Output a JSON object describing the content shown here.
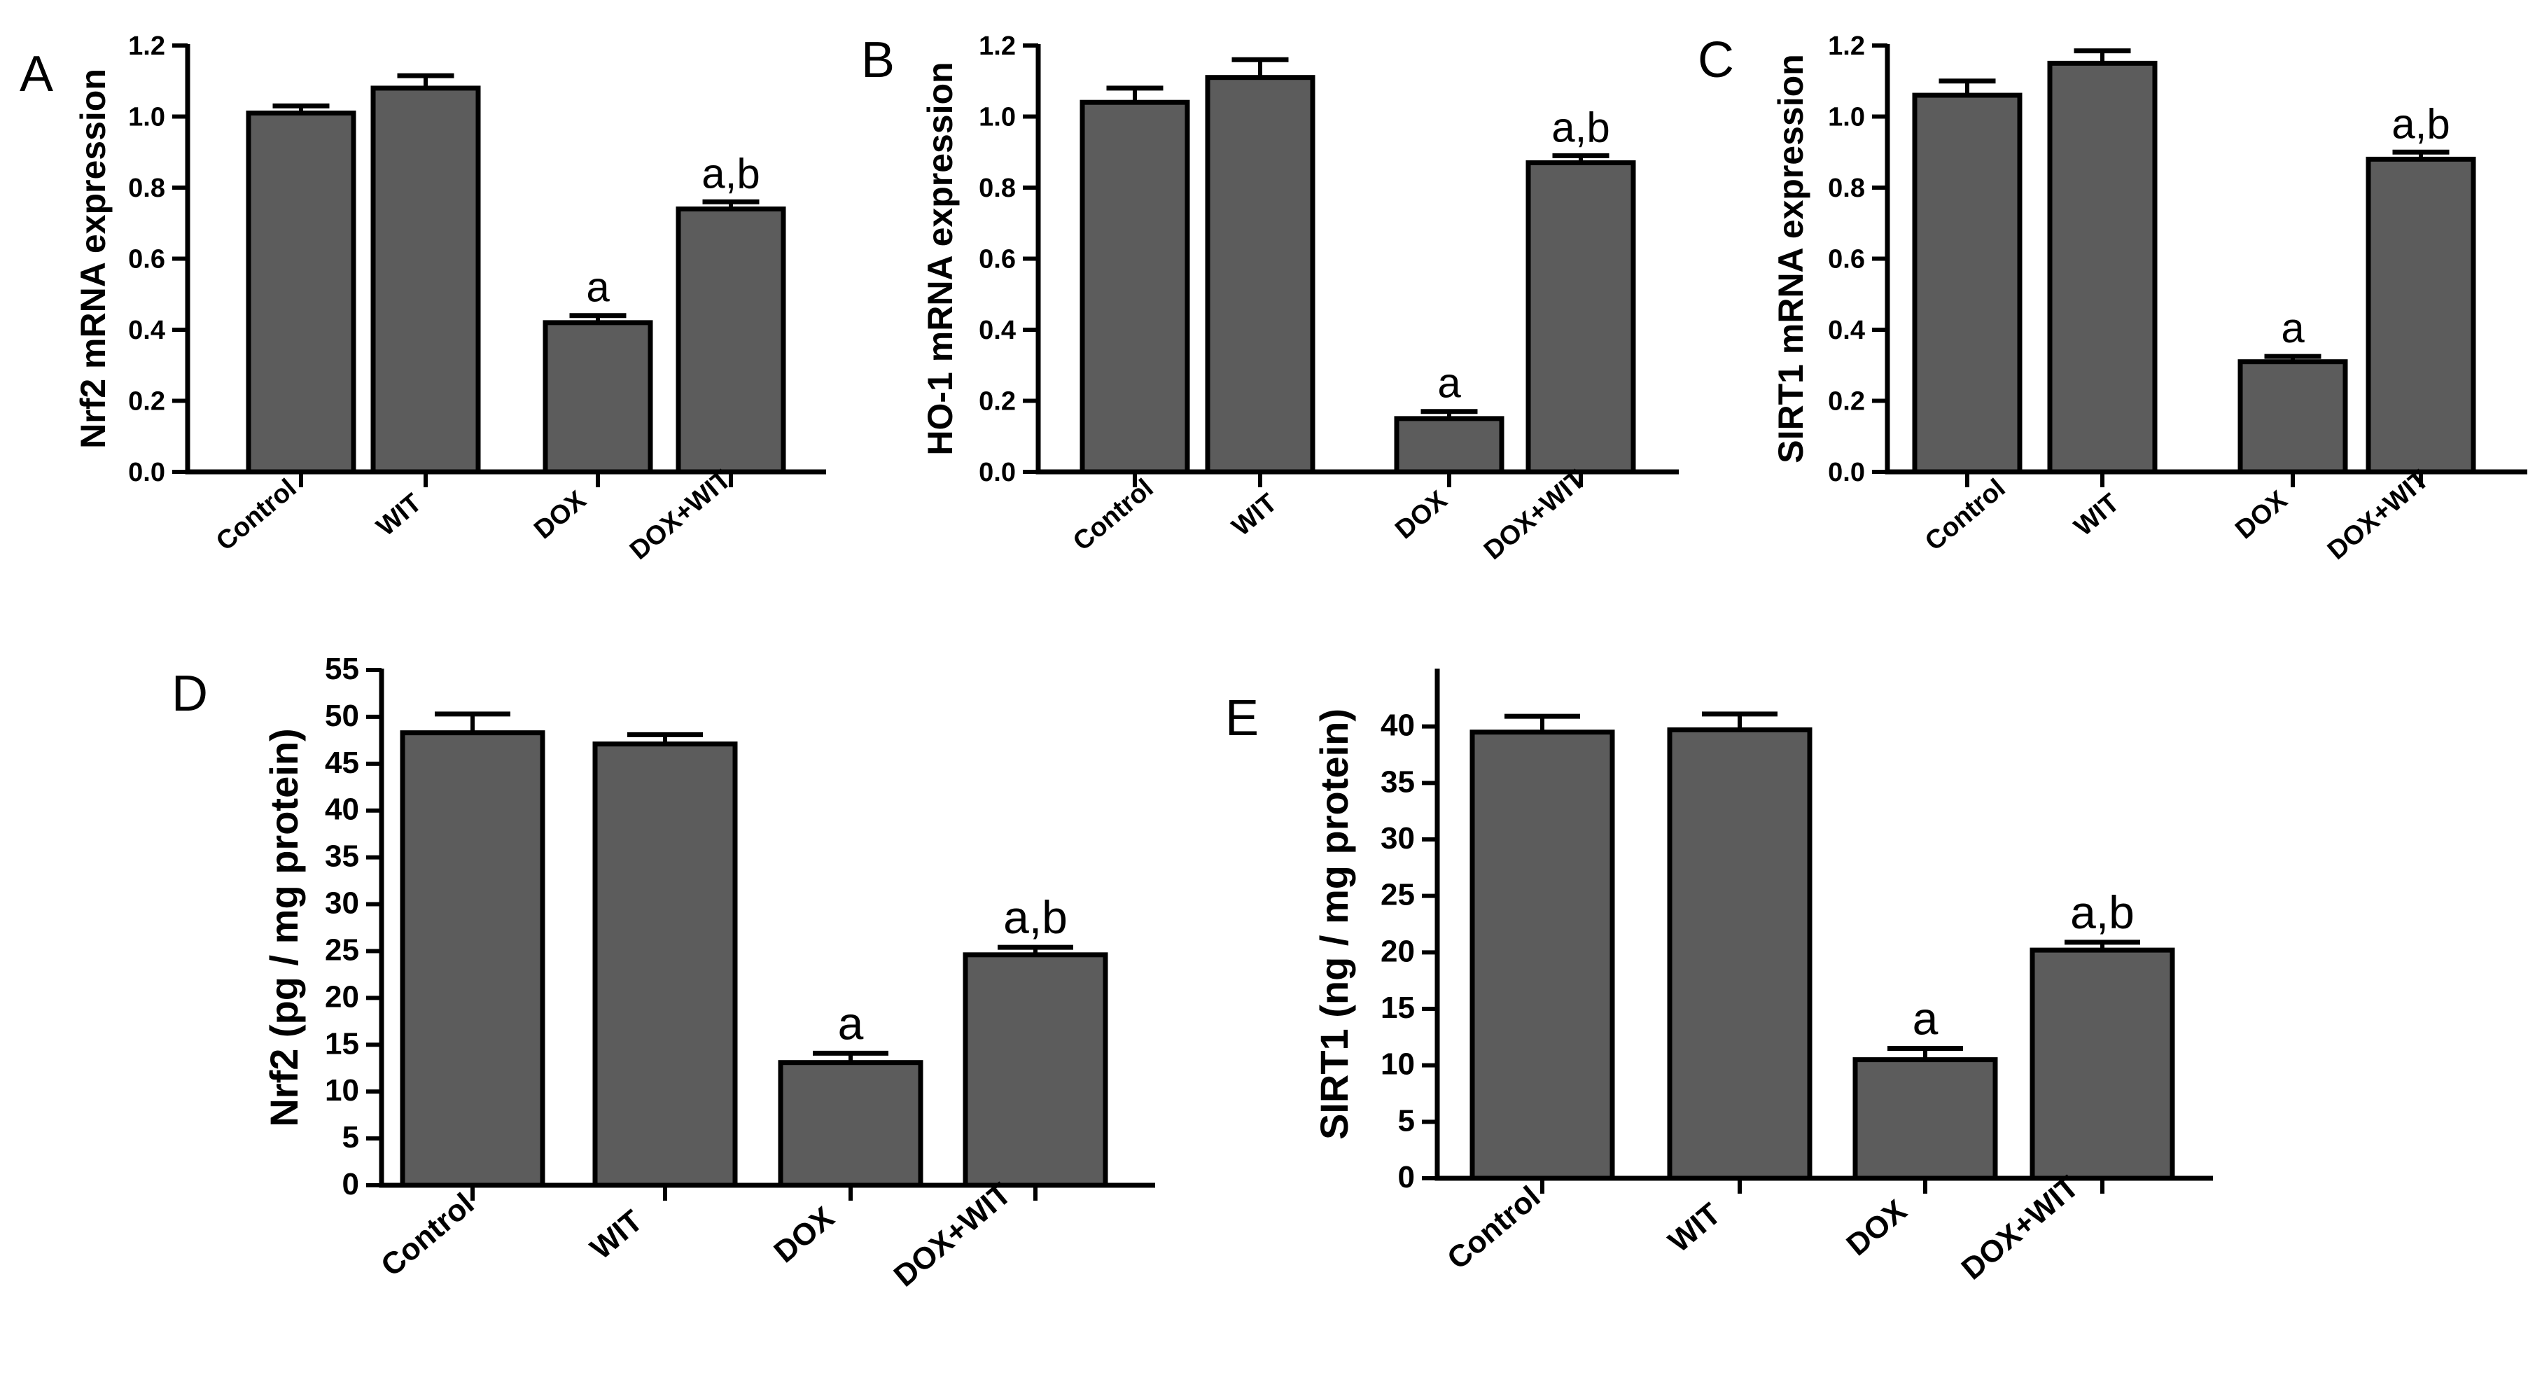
{
  "chart_data": [
    {
      "panel": "A",
      "type": "bar",
      "categories": [
        "Control",
        "WIT",
        "DOX",
        "DOX+WIT"
      ],
      "values": [
        1.01,
        1.08,
        0.42,
        0.74
      ],
      "errors": [
        0.02,
        0.035,
        0.02,
        0.02
      ],
      "annotations": [
        "",
        "",
        "a",
        "a,b"
      ],
      "ylabel": "Nrf2 mRNA expression",
      "ylim": [
        0,
        1.2
      ],
      "yticks": [
        "0.0",
        "0.2",
        "0.4",
        "0.6",
        "0.8",
        "1.0",
        "1.2"
      ],
      "bar_color": "#5c5c5c",
      "grid": false
    },
    {
      "panel": "B",
      "type": "bar",
      "categories": [
        "Control",
        "WIT",
        "DOX",
        "DOX+WIT"
      ],
      "values": [
        1.04,
        1.11,
        0.15,
        0.87
      ],
      "errors": [
        0.04,
        0.05,
        0.02,
        0.02
      ],
      "annotations": [
        "",
        "",
        "a",
        "a,b"
      ],
      "ylabel": "HO-1 mRNA expression",
      "ylim": [
        0,
        1.2
      ],
      "yticks": [
        "0.0",
        "0.2",
        "0.4",
        "0.6",
        "0.8",
        "1.0",
        "1.2"
      ],
      "bar_color": "#5c5c5c",
      "grid": false
    },
    {
      "panel": "C",
      "type": "bar",
      "categories": [
        "Control",
        "WIT",
        "DOX",
        "DOX+WIT"
      ],
      "values": [
        1.06,
        1.15,
        0.31,
        0.88
      ],
      "errors": [
        0.04,
        0.035,
        0.015,
        0.02
      ],
      "annotations": [
        "",
        "",
        "a",
        "a,b"
      ],
      "ylabel": "SIRT1 mRNA expression",
      "ylim": [
        0,
        1.2
      ],
      "yticks": [
        "0.0",
        "0.2",
        "0.4",
        "0.6",
        "0.8",
        "1.0",
        "1.2"
      ],
      "bar_color": "#5c5c5c",
      "grid": false
    },
    {
      "panel": "D",
      "type": "bar",
      "categories": [
        "Control",
        "WIT",
        "DOX",
        "DOX+WIT"
      ],
      "values": [
        48.3,
        47.1,
        13.1,
        24.6
      ],
      "errors": [
        2.0,
        1.0,
        1.0,
        0.8
      ],
      "annotations": [
        "",
        "",
        "a",
        "a,b"
      ],
      "ylabel": "Nrf2 (pg / mg protein)",
      "ylim": [
        0,
        55
      ],
      "yticks": [
        "0",
        "5",
        "10",
        "15",
        "20",
        "25",
        "30",
        "35",
        "40",
        "45",
        "50",
        "55"
      ],
      "bar_color": "#5c5c5c",
      "grid": false
    },
    {
      "panel": "E",
      "type": "bar",
      "categories": [
        "Control",
        "WIT",
        "DOX",
        "DOX+WIT"
      ],
      "values": [
        39.5,
        39.7,
        10.5,
        20.2
      ],
      "errors": [
        1.4,
        1.4,
        1.0,
        0.7
      ],
      "annotations": [
        "",
        "",
        "a",
        "a,b"
      ],
      "ylabel": "SIRT1 (ng / mg protein)",
      "ylim": [
        0,
        45
      ],
      "yticks": [
        "0",
        "5",
        "10",
        "15",
        "20",
        "25",
        "30",
        "35",
        "40"
      ],
      "bar_color": "#5c5c5c",
      "grid": false
    }
  ]
}
